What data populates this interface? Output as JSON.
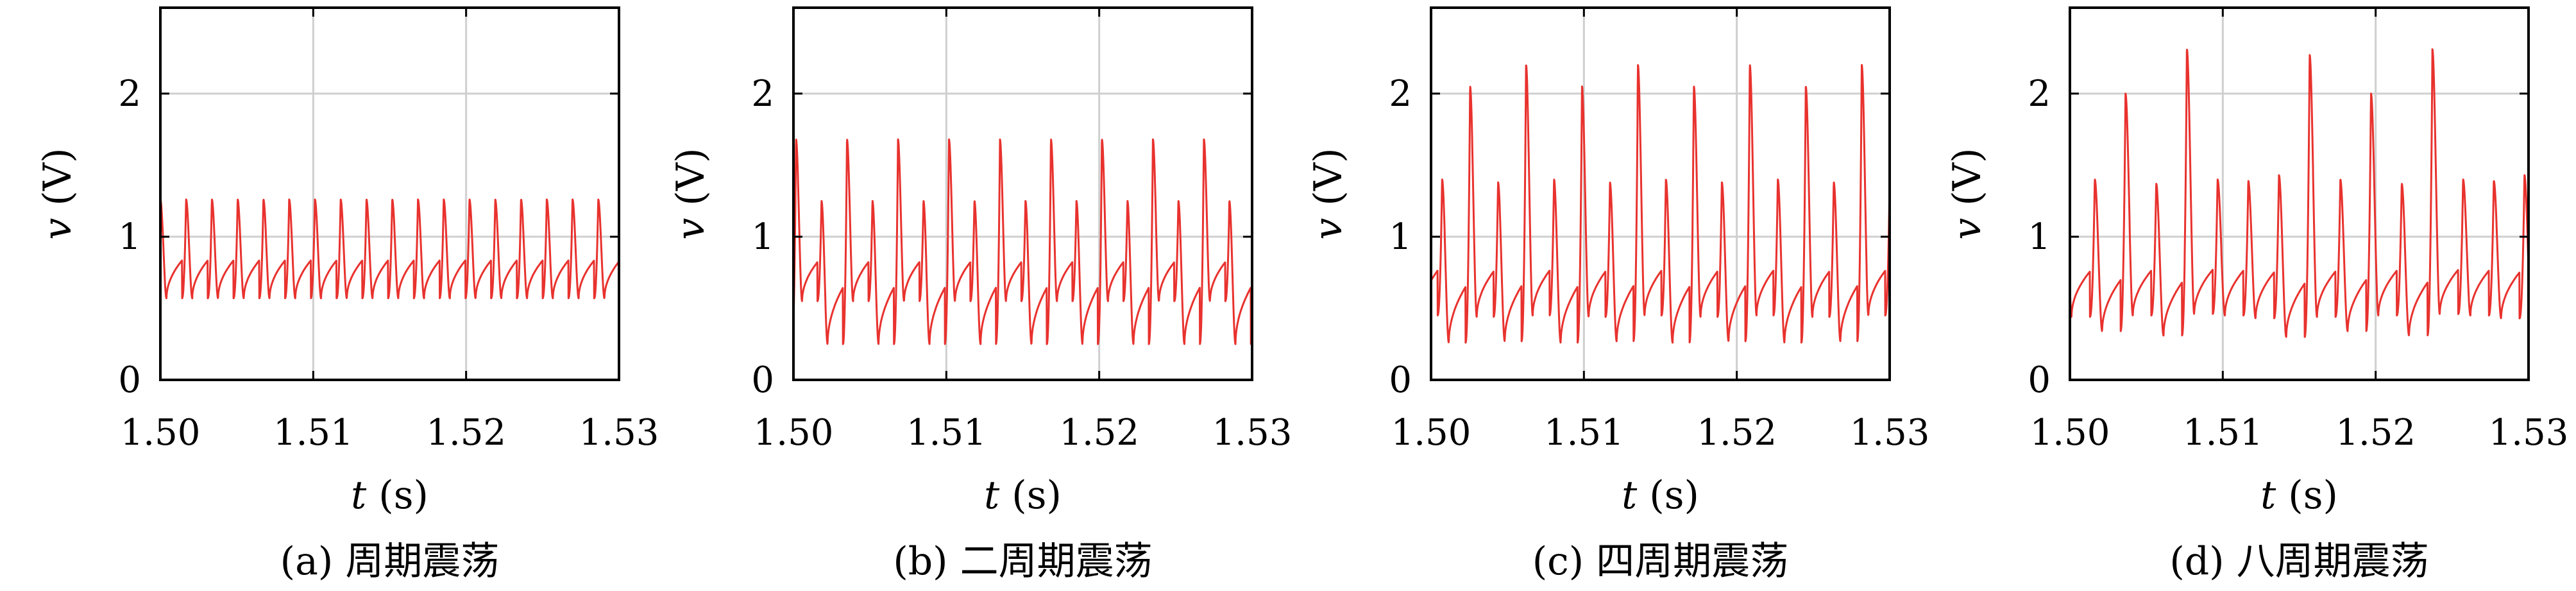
{
  "chart_data": [
    {
      "type": "line",
      "caption": "(a) 周期震荡",
      "xlabel": "t (s)",
      "ylabel": "v (V)",
      "xlim": [
        1.5,
        1.53
      ],
      "ylim": [
        0,
        2.6
      ],
      "xticks": [
        "1.50",
        "1.51",
        "1.52",
        "1.53"
      ],
      "yticks": [
        "0",
        "1",
        "2"
      ],
      "grid": true,
      "series": [
        {
          "color": "#e8322e",
          "period": 0.001685,
          "peaks": [
            1.26
          ],
          "troughs": [
            0.57
          ],
          "phase": 0.00027
        }
      ]
    },
    {
      "type": "line",
      "caption": "(b) 二周期震荡",
      "xlabel": "t (s)",
      "ylabel": "v (V)",
      "xlim": [
        1.5,
        1.53
      ],
      "ylim": [
        0,
        2.6
      ],
      "xticks": [
        "1.50",
        "1.51",
        "1.52",
        "1.53"
      ],
      "yticks": [
        "0",
        "1",
        "2"
      ],
      "grid": true,
      "series": [
        {
          "color": "#e8322e",
          "period": 0.003335,
          "peaks": [
            1.68,
            1.25
          ],
          "troughs": [
            0.25,
            0.55
          ],
          "phase": 0.0001
        }
      ]
    },
    {
      "type": "line",
      "caption": "(c) 四周期震荡",
      "xlabel": "t (s)",
      "ylabel": "v (V)",
      "xlim": [
        1.5,
        1.53
      ],
      "ylim": [
        0,
        2.6
      ],
      "xticks": [
        "1.50",
        "1.51",
        "1.52",
        "1.53"
      ],
      "yticks": [
        "0",
        "1",
        "2"
      ],
      "grid": true,
      "series": [
        {
          "color": "#e8322e",
          "period": 0.00732,
          "peaks": [
            2.2,
            1.4,
            2.05,
            1.38
          ],
          "troughs": [
            0.27,
            0.45,
            0.26,
            0.44
          ],
          "phase": 0.0014
        }
      ]
    },
    {
      "type": "line",
      "caption": "(d) 八周期震荡",
      "xlabel": "t (s)",
      "ylabel": "v (V)",
      "xlim": [
        1.5,
        1.53
      ],
      "ylim": [
        0,
        2.6
      ],
      "xticks": [
        "1.50",
        "1.51",
        "1.52",
        "1.53"
      ],
      "yticks": [
        "0",
        "1",
        "2"
      ],
      "grid": true,
      "series": [
        {
          "color": "#e8322e",
          "period": 0.01606,
          "peaks": [
            2.27,
            1.4,
            2.0,
            1.37,
            2.31,
            1.4,
            1.39,
            1.43
          ],
          "troughs": [
            0.3,
            0.44,
            0.34,
            0.45,
            0.31,
            0.46,
            0.45,
            0.43
          ],
          "phase": 0.0007
        }
      ]
    }
  ]
}
